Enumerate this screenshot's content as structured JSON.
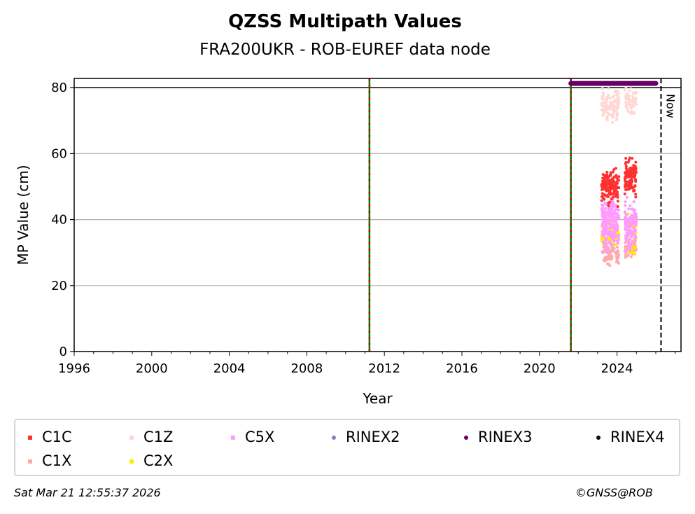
{
  "chart_data": {
    "type": "scatter",
    "title": "QZSS Multipath Values",
    "subtitle": "FRA200UKR - ROB-EUREF data node",
    "xlabel": "Year",
    "ylabel": "MP Value (cm)",
    "xlim": [
      1996,
      2027.3
    ],
    "ylim": [
      0,
      82.8
    ],
    "xticks": [
      "1996",
      "2000",
      "2004",
      "2008",
      "2012",
      "2016",
      "2020",
      "2024"
    ],
    "yticks": [
      "0",
      "20",
      "40",
      "60",
      "80"
    ],
    "grid": "horizontal",
    "reference_line_y": 80,
    "event_lines_x": [
      2011.23,
      2021.62
    ],
    "now_line": {
      "x": 2026.27,
      "label": "Now"
    },
    "rinex3_bar": {
      "x_start": 2021.62,
      "x_end": 2026.0,
      "y": 81.3
    },
    "series": [
      {
        "name": "C1Z",
        "color": "#ffd8d4",
        "clusters": [
          {
            "x": [
              2023.2,
              2024.1
            ],
            "y": [
              68,
              82
            ],
            "n": 120
          },
          {
            "x": [
              2024.4,
              2025.0
            ],
            "y": [
              70,
              82
            ],
            "n": 70
          }
        ]
      },
      {
        "name": "C1X",
        "color": "#ffaaaa",
        "clusters": [
          {
            "x": [
              2023.2,
              2024.1
            ],
            "y": [
              25,
              35
            ],
            "n": 90
          },
          {
            "x": [
              2024.4,
              2025.0
            ],
            "y": [
              27,
              35
            ],
            "n": 60
          }
        ]
      },
      {
        "name": "C2X",
        "color": "#ffee00",
        "clusters": [
          {
            "x": [
              2023.2,
              2024.1
            ],
            "y": [
              31,
              40
            ],
            "n": 90
          },
          {
            "x": [
              2024.4,
              2025.0
            ],
            "y": [
              27,
              45
            ],
            "n": 60
          }
        ]
      },
      {
        "name": "C5X",
        "color": "#ff99ff",
        "clusters": [
          {
            "x": [
              2023.2,
              2024.1
            ],
            "y": [
              28,
              50
            ],
            "n": 200
          },
          {
            "x": [
              2024.4,
              2025.0
            ],
            "y": [
              27,
              48
            ],
            "n": 130
          }
        ]
      },
      {
        "name": "C1C",
        "color": "#ff3030",
        "clusters": [
          {
            "x": [
              2023.2,
              2024.1
            ],
            "y": [
              43,
              57
            ],
            "n": 160
          },
          {
            "x": [
              2024.4,
              2025.0
            ],
            "y": [
              45,
              61
            ],
            "n": 110
          }
        ]
      }
    ]
  },
  "legend": [
    {
      "label": "C1C",
      "color": "#ff3030",
      "marker": "x"
    },
    {
      "label": "C1Z",
      "color": "#ffd8d4",
      "marker": "x"
    },
    {
      "label": "C5X",
      "color": "#ff99ff",
      "marker": "x"
    },
    {
      "label": "RINEX2",
      "color": "#8080c0",
      "marker": "dot"
    },
    {
      "label": "RINEX3",
      "color": "#660066",
      "marker": "dot"
    },
    {
      "label": "RINEX4",
      "color": "#1a0020",
      "marker": "dot"
    },
    {
      "label": "C1X",
      "color": "#ffaaaa",
      "marker": "x"
    },
    {
      "label": "C2X",
      "color": "#ffee00",
      "marker": "x"
    }
  ],
  "footer": {
    "timestamp": "Sat Mar 21 12:55:37 2026",
    "copyright": "©GNSS@ROB"
  }
}
